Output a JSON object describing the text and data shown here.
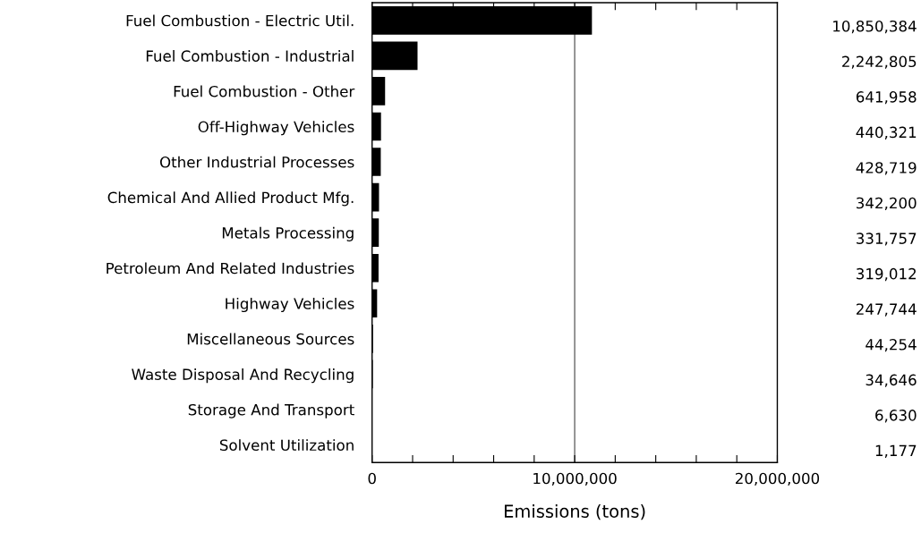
{
  "chart_data": {
    "type": "bar",
    "orientation": "horizontal",
    "categories": [
      "Fuel Combustion - Electric Util.",
      "Fuel Combustion - Industrial",
      "Fuel Combustion - Other",
      "Off-Highway Vehicles",
      "Other Industrial Processes",
      "Chemical And Allied Product Mfg.",
      "Metals Processing",
      "Petroleum And Related Industries",
      "Highway Vehicles",
      "Miscellaneous Sources",
      "Waste Disposal And Recycling",
      "Storage And Transport",
      "Solvent Utilization"
    ],
    "values": [
      10850384,
      2242805,
      641958,
      440321,
      428719,
      342200,
      331757,
      319012,
      247744,
      44254,
      34646,
      6630,
      1177
    ],
    "value_labels": [
      "10,850,384",
      "2,242,805",
      "641,958",
      "440,321",
      "428,719",
      "342,200",
      "331,757",
      "319,012",
      "247,744",
      "44,254",
      "34,646",
      "6,630",
      "1,177"
    ],
    "color": "#000000",
    "xlim": [
      0,
      20000000
    ],
    "xticks": [
      {
        "value": 0,
        "label": "0"
      },
      {
        "value": 2000000,
        "label": null
      },
      {
        "value": 4000000,
        "label": null
      },
      {
        "value": 6000000,
        "label": null
      },
      {
        "value": 8000000,
        "label": null
      },
      {
        "value": 10000000,
        "label": "10,000,000"
      },
      {
        "value": 12000000,
        "label": null
      },
      {
        "value": 14000000,
        "label": null
      },
      {
        "value": 16000000,
        "label": null
      },
      {
        "value": 18000000,
        "label": null
      },
      {
        "value": 20000000,
        "label": "20,000,000"
      }
    ],
    "ref_lines": [
      {
        "axis": "x",
        "value": 10000000,
        "color": "#808080"
      }
    ],
    "xlabel": "Emissions (tons)",
    "grid": false,
    "legend": false
  }
}
